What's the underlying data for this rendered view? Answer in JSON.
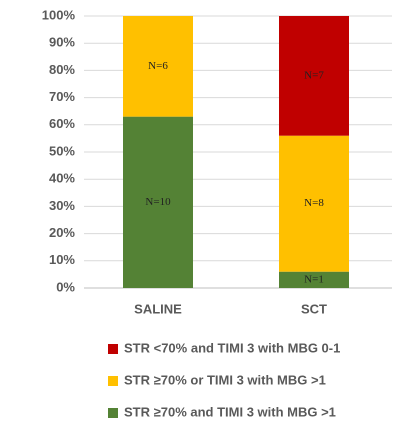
{
  "chart_data": {
    "type": "stacked_bar",
    "categories": [
      "SALINE",
      "SCT"
    ],
    "series": [
      {
        "name": "STR ≥70% and TIMI 3 with MBG >1",
        "color": "#548235",
        "values": [
          63,
          6
        ],
        "value_labels": [
          "N=10",
          "N=1"
        ]
      },
      {
        "name": "STR ≥70% or TIMI 3 with MBG >1",
        "color": "#ffc000",
        "values": [
          37,
          50
        ],
        "value_labels": [
          "N=6",
          "N=8"
        ]
      },
      {
        "name": "STR <70% and TIMI 3 with MBG 0-1",
        "color": "#c00000",
        "values": [
          0,
          44
        ],
        "value_labels": [
          null,
          "N=7"
        ]
      }
    ],
    "ylim": [
      0,
      100
    ],
    "yticks": [
      {
        "value": 0,
        "label": "0%"
      },
      {
        "value": 10,
        "label": "10%"
      },
      {
        "value": 20,
        "label": "20%"
      },
      {
        "value": 30,
        "label": "30%"
      },
      {
        "value": 40,
        "label": "40%"
      },
      {
        "value": 50,
        "label": "50%"
      },
      {
        "value": 60,
        "label": "60%"
      },
      {
        "value": 70,
        "label": "70%"
      },
      {
        "value": 80,
        "label": "80%"
      },
      {
        "value": 90,
        "label": "90%"
      },
      {
        "value": 100,
        "label": "100%"
      }
    ],
    "grid": true,
    "legend": "bottom"
  }
}
